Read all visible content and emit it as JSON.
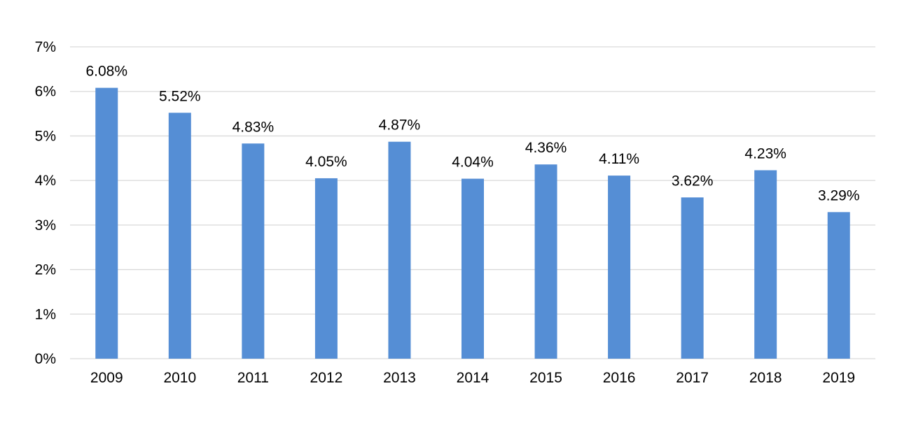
{
  "chart_data": {
    "type": "bar",
    "categories": [
      "2009",
      "2010",
      "2011",
      "2012",
      "2013",
      "2014",
      "2015",
      "2016",
      "2017",
      "2018",
      "2019"
    ],
    "values": [
      6.08,
      5.52,
      4.83,
      4.05,
      4.87,
      4.04,
      4.36,
      4.11,
      3.62,
      4.23,
      3.29
    ],
    "data_labels": [
      "6.08%",
      "5.52%",
      "4.83%",
      "4.05%",
      "4.87%",
      "4.04%",
      "4.36%",
      "4.11%",
      "3.62%",
      "4.23%",
      "3.29%"
    ],
    "y_ticks": [
      0,
      1,
      2,
      3,
      4,
      5,
      6,
      7
    ],
    "y_tick_labels": [
      "0%",
      "1%",
      "2%",
      "3%",
      "4%",
      "5%",
      "6%",
      "7%"
    ],
    "ylim": [
      0,
      7
    ],
    "title": "",
    "xlabel": "",
    "ylabel": "",
    "grid": true,
    "legend": "none",
    "colors": {
      "bar": "#558ed5",
      "gridline": "#d9d9d9",
      "text": "#000000"
    }
  }
}
